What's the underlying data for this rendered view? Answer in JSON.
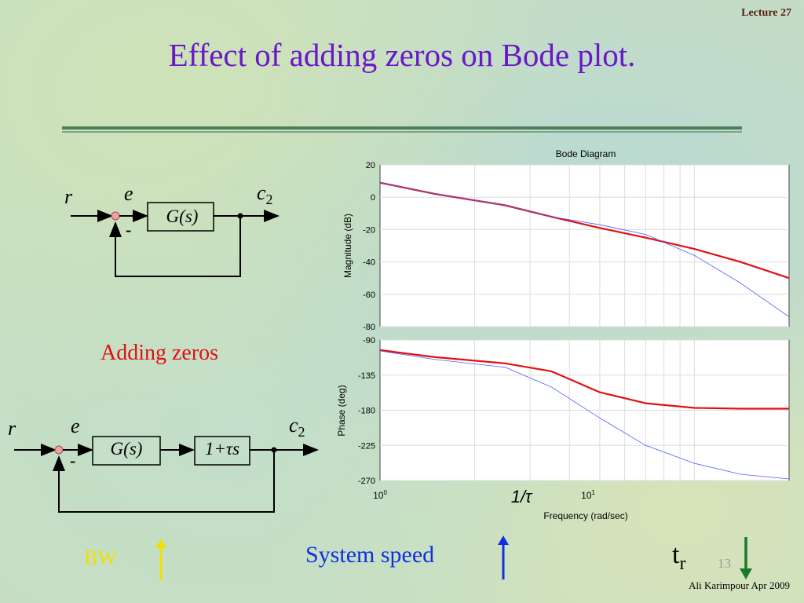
{
  "header": {
    "lecture": "Lecture 27",
    "title": "Effect of adding zeros on Bode plot."
  },
  "block1": {
    "r": "r",
    "e": "e",
    "c": "c",
    "c_sub": "2",
    "G": "G(s)",
    "minus": "-"
  },
  "adding_zeros": "Adding zeros",
  "block2": {
    "r": "r",
    "e": "e",
    "c": "c",
    "c_sub": "2",
    "G": "G(s)",
    "Z": "1+τs",
    "minus": "-"
  },
  "bottom": {
    "bw": "BW",
    "system_speed": "System speed",
    "tr": "t",
    "tr_sub": "r",
    "slide_number": "13",
    "footer": "Ali Karimpour  Apr 2009"
  },
  "colors": {
    "title": "#6a18c8",
    "with_zero": "#e01010",
    "original": "#4a5cff",
    "up_yellow": "#f0e000",
    "up_blue": "#1030e0",
    "down_green": "#1a7a2a"
  },
  "chart_data": {
    "type": "line",
    "title": "Bode Diagram",
    "xlabel": "Frequency  (rad/sec)",
    "xscale": "log",
    "xlim": [
      1,
      20
    ],
    "xticks": [
      {
        "base": "10",
        "exp": "0"
      },
      {
        "base": "10",
        "exp": "1"
      }
    ],
    "annotation": "1/τ",
    "grid": true,
    "magnitude": {
      "ylabel": "Magnitude (dB)",
      "ylim": [
        -80,
        20
      ],
      "yticks": [
        "20",
        "0",
        "-20",
        "-40",
        "-60",
        "-80"
      ],
      "series": [
        {
          "x": [
            1,
            1.5,
            2.5,
            3.5,
            5,
            7,
            10,
            14,
            20
          ],
          "y": [
            9,
            2,
            -5,
            -12,
            -19,
            -25,
            -32,
            -40,
            -50
          ]
        },
        {
          "x": [
            1,
            1.5,
            2.5,
            3.5,
            5,
            7,
            10,
            14,
            20
          ],
          "y": [
            9,
            2,
            -5,
            -12,
            -17,
            -23,
            -36,
            -53,
            -74
          ]
        }
      ]
    },
    "phase": {
      "ylabel": "Phase (deg)",
      "ylim": [
        -270,
        -90
      ],
      "yticks": [
        "-90",
        "-135",
        "-180",
        "-225",
        "-270"
      ],
      "series": [
        {
          "x": [
            1,
            1.5,
            2.5,
            3.5,
            5,
            7,
            10,
            14,
            20
          ],
          "y": [
            -103,
            -112,
            -120,
            -130,
            -157,
            -171,
            -177,
            -178,
            -178
          ]
        },
        {
          "x": [
            1,
            1.5,
            2.5,
            3.5,
            5,
            7,
            10,
            14,
            20
          ],
          "y": [
            -104,
            -115,
            -125,
            -150,
            -190,
            -225,
            -248,
            -262,
            -268
          ]
        }
      ]
    }
  }
}
